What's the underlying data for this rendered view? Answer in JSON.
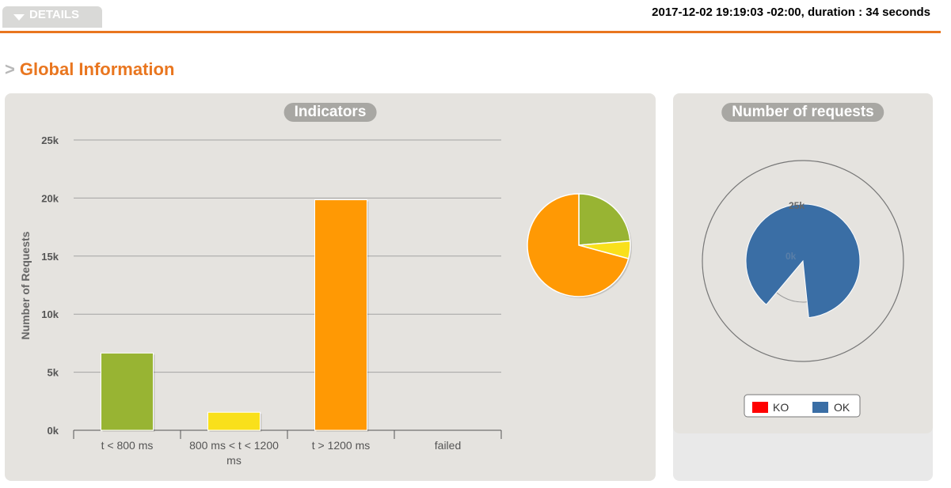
{
  "header": {
    "details_label": "DETAILS",
    "run_info": "2017-12-02 19:19:03 -02:00, duration : 34 seconds"
  },
  "section": {
    "arrow": ">",
    "title": "Global Information"
  },
  "colors": {
    "accent": "#e9761f",
    "green": "#98b433",
    "yellow": "#f9e01b",
    "orange": "#ff9904",
    "ko": "#ff0000",
    "ok": "#3a6ea5"
  },
  "chart_data": [
    {
      "type": "bar",
      "title": "Indicators",
      "ylabel": "Number of Requests",
      "xlabel": "",
      "categories": [
        "t < 800 ms",
        "800 ms < t < 1200 ms",
        "t > 1200 ms",
        "failed"
      ],
      "values": [
        6650,
        1550,
        19850,
        0
      ],
      "colors": [
        "#98b433",
        "#f9e01b",
        "#ff9904",
        "#ff0000"
      ],
      "ylim": [
        0,
        25000
      ],
      "yticks": [
        {
          "value": 0,
          "label": "0k"
        },
        {
          "value": 5000,
          "label": "5k"
        },
        {
          "value": 10000,
          "label": "10k"
        },
        {
          "value": 15000,
          "label": "15k"
        },
        {
          "value": 20000,
          "label": "20k"
        },
        {
          "value": 25000,
          "label": "25k"
        }
      ],
      "grid": true
    },
    {
      "type": "pie",
      "title": "",
      "categories": [
        "t < 800 ms",
        "800 ms < t < 1200 ms",
        "t > 1200 ms",
        "failed"
      ],
      "values": [
        6650,
        1550,
        19850,
        0
      ],
      "colors": [
        "#98b433",
        "#f9e01b",
        "#ff9904",
        "#ff0000"
      ]
    },
    {
      "type": "radial-bar",
      "title": "Number of requests",
      "series": [
        {
          "name": "KO",
          "value": 0,
          "color": "#ff0000"
        },
        {
          "name": "OK",
          "value": 28050,
          "color": "#3a6ea5"
        }
      ],
      "axis_labels": [
        "25k",
        "0k"
      ],
      "axis_max": 25000,
      "legend": "bottom"
    }
  ]
}
